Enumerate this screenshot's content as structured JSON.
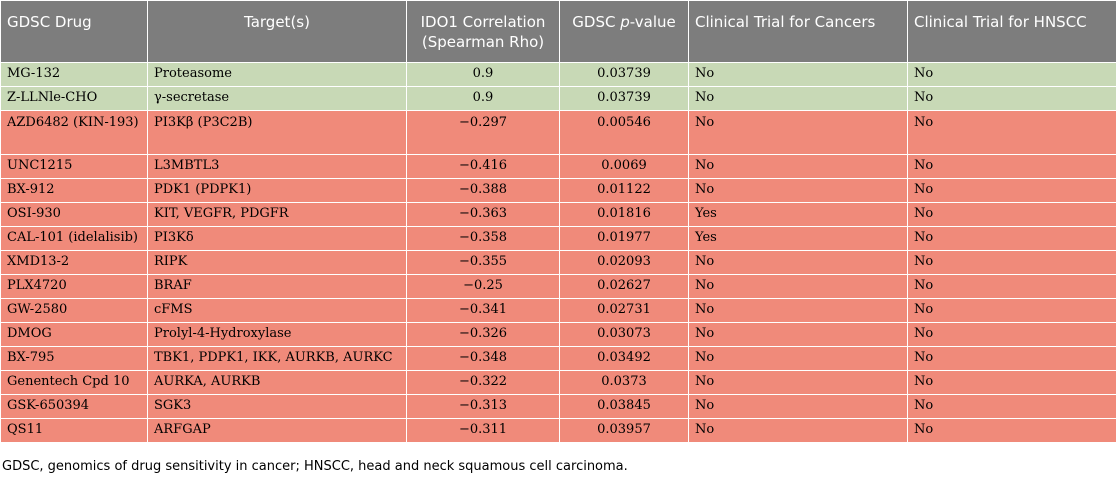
{
  "table": {
    "headers": {
      "drug": "GDSC Drug",
      "target": "Target(s)",
      "correlation_line1": "IDO1 Correlation",
      "correlation_line2": "(Spearman Rho)",
      "pvalue_prefix": "GDSC ",
      "pvalue_italic": "p",
      "pvalue_suffix": "-value",
      "trial_cancers": "Clinical Trial for Cancers",
      "trial_hnscc": "Clinical Trial for HNSCC"
    },
    "rows": [
      {
        "group": "positive",
        "drug": "MG-132",
        "target": "Proteasome",
        "rho": "0.9",
        "p": "0.03739",
        "trial_cancers": "No",
        "trial_hnscc": "No"
      },
      {
        "group": "positive",
        "drug": "Z-LLNle-CHO",
        "target": "γ-secretase",
        "rho": "0.9",
        "p": "0.03739",
        "trial_cancers": "No",
        "trial_hnscc": "No"
      },
      {
        "group": "negative",
        "drug": "AZD6482 (KIN-193)",
        "target": "PI3Kβ (P3C2B)",
        "rho": "−0.297",
        "p": "0.00546",
        "trial_cancers": "No",
        "trial_hnscc": "No"
      },
      {
        "group": "negative",
        "drug": "UNC1215",
        "target": "L3MBTL3",
        "rho": "−0.416",
        "p": "0.0069",
        "trial_cancers": "No",
        "trial_hnscc": "No"
      },
      {
        "group": "negative",
        "drug": "BX-912",
        "target": "PDK1 (PDPK1)",
        "rho": "−0.388",
        "p": "0.01122",
        "trial_cancers": "No",
        "trial_hnscc": "No"
      },
      {
        "group": "negative",
        "drug": "OSI-930",
        "target": "KIT, VEGFR, PDGFR",
        "rho": "−0.363",
        "p": "0.01816",
        "trial_cancers": "Yes",
        "trial_hnscc": "No"
      },
      {
        "group": "negative",
        "drug": "CAL-101 (idelalisib)",
        "target": "PI3Kδ",
        "rho": "−0.358",
        "p": "0.01977",
        "trial_cancers": "Yes",
        "trial_hnscc": "No"
      },
      {
        "group": "negative",
        "drug": "XMD13-2",
        "target": "RIPK",
        "rho": "−0.355",
        "p": "0.02093",
        "trial_cancers": "No",
        "trial_hnscc": "No"
      },
      {
        "group": "negative",
        "drug": "PLX4720",
        "target": "BRAF",
        "rho": "−0.25",
        "p": "0.02627",
        "trial_cancers": "No",
        "trial_hnscc": "No"
      },
      {
        "group": "negative",
        "drug": "GW-2580",
        "target": "cFMS",
        "rho": "−0.341",
        "p": "0.02731",
        "trial_cancers": "No",
        "trial_hnscc": "No"
      },
      {
        "group": "negative",
        "drug": "DMOG",
        "target": "Prolyl-4-Hydroxylase",
        "rho": "−0.326",
        "p": "0.03073",
        "trial_cancers": "No",
        "trial_hnscc": "No"
      },
      {
        "group": "negative",
        "drug": "BX-795",
        "target": "TBK1, PDPK1, IKK, AURKB, AURKC",
        "rho": "−0.348",
        "p": "0.03492",
        "trial_cancers": "No",
        "trial_hnscc": "No"
      },
      {
        "group": "negative",
        "drug": "Genentech Cpd 10",
        "target": "AURKA, AURKB",
        "rho": "−0.322",
        "p": "0.0373",
        "trial_cancers": "No",
        "trial_hnscc": "No"
      },
      {
        "group": "negative",
        "drug": "GSK-650394",
        "target": "SGK3",
        "rho": "−0.313",
        "p": "0.03845",
        "trial_cancers": "No",
        "trial_hnscc": "No"
      },
      {
        "group": "negative",
        "drug": "QS11",
        "target": "ARFGAP",
        "rho": "−0.311",
        "p": "0.03957",
        "trial_cancers": "No",
        "trial_hnscc": "No"
      }
    ]
  },
  "footnote": "GDSC, genomics of drug sensitivity in cancer; HNSCC, head and neck squamous cell carcinoma.",
  "colors": {
    "header_bg": "#7d7d7d",
    "positive_row": "#c8d9b6",
    "negative_row": "#f08a7a"
  }
}
